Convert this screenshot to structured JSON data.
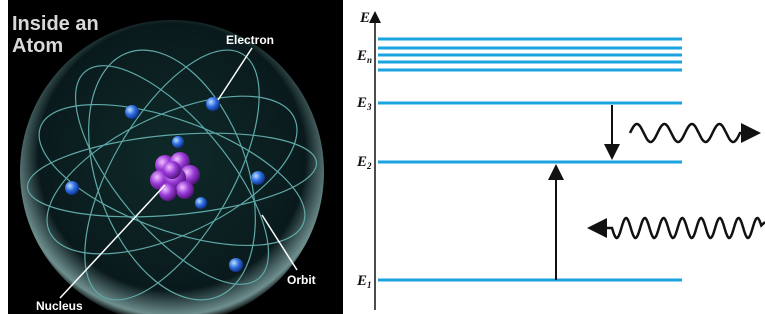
{
  "atom": {
    "title": [
      "Inside an",
      "Atom"
    ],
    "labels": {
      "electron": "Electron",
      "orbit": "Orbit",
      "nucleus": "Nucleus"
    }
  },
  "energy_diagram": {
    "axis_label": "E",
    "levels": [
      {
        "symbol": "E",
        "subscript": "n"
      },
      {
        "symbol": "E",
        "subscript": "3"
      },
      {
        "symbol": "E",
        "subscript": "2"
      },
      {
        "symbol": "E",
        "subscript": "1"
      }
    ]
  }
}
